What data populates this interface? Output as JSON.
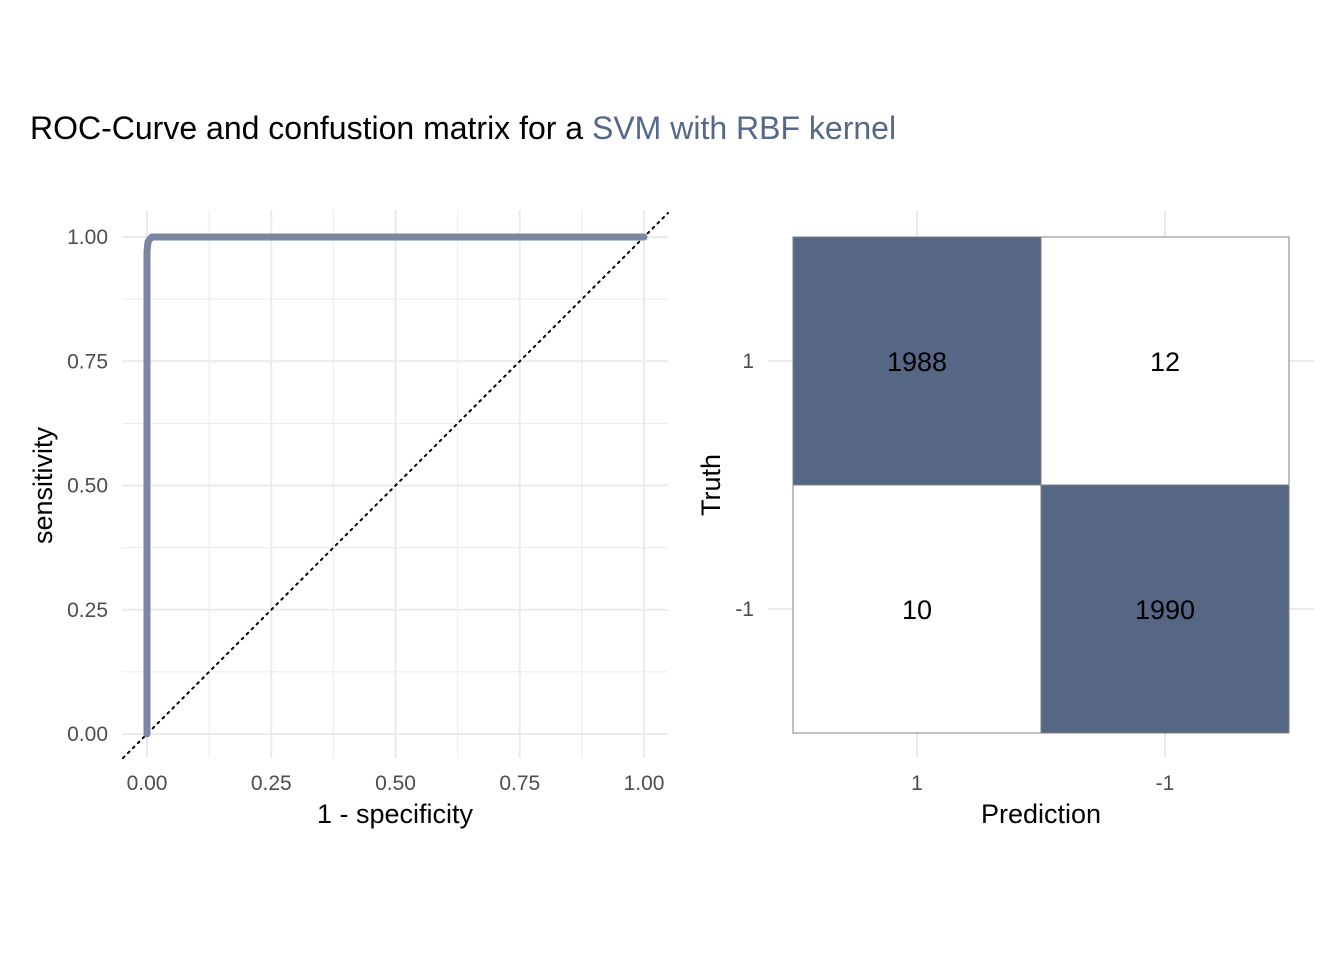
{
  "title": {
    "prefix": "ROC-Curve and confustion matrix for a ",
    "accent": "SVM with RBF kernel"
  },
  "colors": {
    "accent": "#56688a",
    "roc_line": "#7b86a0",
    "tile_fill": "#556785",
    "grid": "#ebebeb"
  },
  "chart_data": [
    {
      "type": "line",
      "xlabel": "1 - specificity",
      "ylabel": "sensitivity",
      "xlim": [
        0,
        1
      ],
      "ylim": [
        0,
        1
      ],
      "x_ticks": [
        "0.00",
        "0.25",
        "0.50",
        "0.75",
        "1.00"
      ],
      "y_ticks": [
        "0.00",
        "0.25",
        "0.50",
        "0.75",
        "1.00"
      ],
      "grid": true,
      "reference_line": "diagonal dotted",
      "series": [
        {
          "x": [
            0,
            0,
            0,
            0.002,
            0.005,
            0.01,
            0.03,
            1.0
          ],
          "y": [
            0,
            0.92,
            0.97,
            0.99,
            0.995,
            1.0,
            1.0,
            1.0
          ]
        }
      ]
    },
    {
      "type": "heatmap",
      "xlabel": "Prediction",
      "ylabel": "Truth",
      "x_categories": [
        "1",
        "-1"
      ],
      "y_categories": [
        "1",
        "-1"
      ],
      "cells": [
        {
          "truth": "1",
          "prediction": "1",
          "value": 1988,
          "label": "1988"
        },
        {
          "truth": "1",
          "prediction": "-1",
          "value": 12,
          "label": "12"
        },
        {
          "truth": "-1",
          "prediction": "1",
          "value": 10,
          "label": "10"
        },
        {
          "truth": "-1",
          "prediction": "-1",
          "value": 1990,
          "label": "1990"
        }
      ]
    }
  ]
}
